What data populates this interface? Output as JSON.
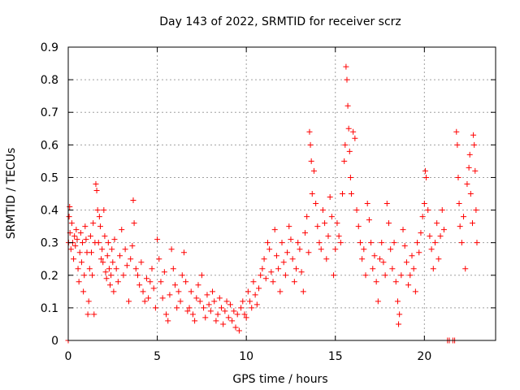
{
  "chart_data": {
    "type": "scatter",
    "title": "Day 143 of 2022, SRMTID for receiver scrz",
    "xlabel": "GPS time / hours",
    "ylabel": "SRMTID / TECUs",
    "xlim": [
      0,
      24
    ],
    "ylim": [
      0,
      0.9
    ],
    "xticks": [
      0,
      5,
      10,
      15,
      20
    ],
    "yticks": [
      0,
      0.1,
      0.2,
      0.3,
      0.4,
      0.5,
      0.6,
      0.7,
      0.8,
      0.9
    ],
    "xtick_labels": [
      "0",
      "5",
      "10",
      "15",
      "20"
    ],
    "ytick_labels": [
      "0",
      "0.1",
      "0.2",
      "0.3",
      "0.4",
      "0.5",
      "0.6",
      "0.7",
      "0.8",
      "0.9"
    ],
    "grid": true,
    "marker": "plus",
    "series": [
      {
        "name": "SRMTID",
        "color": "#ff0000",
        "points": [
          [
            0.0,
            0.0
          ],
          [
            0.02,
            0.3
          ],
          [
            0.05,
            0.38
          ],
          [
            0.08,
            0.41
          ],
          [
            0.1,
            0.33
          ],
          [
            0.15,
            0.28
          ],
          [
            0.2,
            0.36
          ],
          [
            0.25,
            0.3
          ],
          [
            0.3,
            0.25
          ],
          [
            0.35,
            0.32
          ],
          [
            0.4,
            0.29
          ],
          [
            0.45,
            0.34
          ],
          [
            0.5,
            0.31
          ],
          [
            0.55,
            0.22
          ],
          [
            0.6,
            0.18
          ],
          [
            0.65,
            0.27
          ],
          [
            0.7,
            0.33
          ],
          [
            0.75,
            0.24
          ],
          [
            0.8,
            0.3
          ],
          [
            0.85,
            0.15
          ],
          [
            0.9,
            0.2
          ],
          [
            0.95,
            0.35
          ],
          [
            1.0,
            0.31
          ],
          [
            1.05,
            0.27
          ],
          [
            1.1,
            0.08
          ],
          [
            1.15,
            0.12
          ],
          [
            1.2,
            0.22
          ],
          [
            1.25,
            0.32
          ],
          [
            1.3,
            0.27
          ],
          [
            1.35,
            0.2
          ],
          [
            1.4,
            0.36
          ],
          [
            1.45,
            0.08
          ],
          [
            1.5,
            0.3
          ],
          [
            1.55,
            0.48
          ],
          [
            1.6,
            0.46
          ],
          [
            1.65,
            0.4
          ],
          [
            1.7,
            0.3
          ],
          [
            1.75,
            0.38
          ],
          [
            1.8,
            0.35
          ],
          [
            1.85,
            0.25
          ],
          [
            1.9,
            0.28
          ],
          [
            1.95,
            0.24
          ],
          [
            2.0,
            0.4
          ],
          [
            2.05,
            0.32
          ],
          [
            2.1,
            0.21
          ],
          [
            2.15,
            0.19
          ],
          [
            2.2,
            0.26
          ],
          [
            2.25,
            0.3
          ],
          [
            2.3,
            0.22
          ],
          [
            2.35,
            0.17
          ],
          [
            2.4,
            0.2
          ],
          [
            2.45,
            0.28
          ],
          [
            2.5,
            0.24
          ],
          [
            2.55,
            0.15
          ],
          [
            2.6,
            0.31
          ],
          [
            2.7,
            0.22
          ],
          [
            2.8,
            0.18
          ],
          [
            2.9,
            0.26
          ],
          [
            3.0,
            0.34
          ],
          [
            3.1,
            0.2
          ],
          [
            3.2,
            0.28
          ],
          [
            3.3,
            0.23
          ],
          [
            3.4,
            0.12
          ],
          [
            3.5,
            0.25
          ],
          [
            3.6,
            0.29
          ],
          [
            3.65,
            0.43
          ],
          [
            3.7,
            0.36
          ],
          [
            3.8,
            0.22
          ],
          [
            3.9,
            0.2
          ],
          [
            4.0,
            0.17
          ],
          [
            4.1,
            0.24
          ],
          [
            4.2,
            0.15
          ],
          [
            4.3,
            0.12
          ],
          [
            4.4,
            0.19
          ],
          [
            4.5,
            0.13
          ],
          [
            4.6,
            0.18
          ],
          [
            4.7,
            0.22
          ],
          [
            4.8,
            0.16
          ],
          [
            4.9,
            0.1
          ],
          [
            5.0,
            0.31
          ],
          [
            5.1,
            0.25
          ],
          [
            5.2,
            0.18
          ],
          [
            5.3,
            0.13
          ],
          [
            5.4,
            0.21
          ],
          [
            5.5,
            0.08
          ],
          [
            5.6,
            0.06
          ],
          [
            5.7,
            0.14
          ],
          [
            5.8,
            0.28
          ],
          [
            5.9,
            0.22
          ],
          [
            6.0,
            0.17
          ],
          [
            6.1,
            0.1
          ],
          [
            6.2,
            0.15
          ],
          [
            6.3,
            0.12
          ],
          [
            6.4,
            0.2
          ],
          [
            6.5,
            0.27
          ],
          [
            6.6,
            0.18
          ],
          [
            6.7,
            0.09
          ],
          [
            6.8,
            0.1
          ],
          [
            6.9,
            0.15
          ],
          [
            7.0,
            0.08
          ],
          [
            7.1,
            0.06
          ],
          [
            7.2,
            0.13
          ],
          [
            7.3,
            0.17
          ],
          [
            7.4,
            0.12
          ],
          [
            7.5,
            0.2
          ],
          [
            7.6,
            0.1
          ],
          [
            7.7,
            0.07
          ],
          [
            7.8,
            0.14
          ],
          [
            7.9,
            0.11
          ],
          [
            8.0,
            0.09
          ],
          [
            8.1,
            0.15
          ],
          [
            8.2,
            0.12
          ],
          [
            8.3,
            0.06
          ],
          [
            8.4,
            0.08
          ],
          [
            8.5,
            0.13
          ],
          [
            8.6,
            0.1
          ],
          [
            8.7,
            0.05
          ],
          [
            8.8,
            0.09
          ],
          [
            8.9,
            0.12
          ],
          [
            9.0,
            0.07
          ],
          [
            9.1,
            0.11
          ],
          [
            9.2,
            0.06
          ],
          [
            9.3,
            0.09
          ],
          [
            9.4,
            0.04
          ],
          [
            9.5,
            0.08
          ],
          [
            9.6,
            0.03
          ],
          [
            9.7,
            0.1
          ],
          [
            9.8,
            0.12
          ],
          [
            9.9,
            0.08
          ],
          [
            10.0,
            0.07
          ],
          [
            10.1,
            0.15
          ],
          [
            10.2,
            0.12
          ],
          [
            10.3,
            0.1
          ],
          [
            10.4,
            0.18
          ],
          [
            10.5,
            0.14
          ],
          [
            10.6,
            0.11
          ],
          [
            10.7,
            0.16
          ],
          [
            10.8,
            0.2
          ],
          [
            10.9,
            0.22
          ],
          [
            11.0,
            0.25
          ],
          [
            11.1,
            0.19
          ],
          [
            11.2,
            0.3
          ],
          [
            11.3,
            0.28
          ],
          [
            11.4,
            0.21
          ],
          [
            11.5,
            0.18
          ],
          [
            11.6,
            0.34
          ],
          [
            11.7,
            0.26
          ],
          [
            11.8,
            0.22
          ],
          [
            11.9,
            0.15
          ],
          [
            12.0,
            0.3
          ],
          [
            12.1,
            0.24
          ],
          [
            12.2,
            0.2
          ],
          [
            12.3,
            0.27
          ],
          [
            12.4,
            0.35
          ],
          [
            12.5,
            0.31
          ],
          [
            12.6,
            0.25
          ],
          [
            12.7,
            0.18
          ],
          [
            12.8,
            0.22
          ],
          [
            12.9,
            0.3
          ],
          [
            13.0,
            0.28
          ],
          [
            13.1,
            0.21
          ],
          [
            13.2,
            0.15
          ],
          [
            13.3,
            0.33
          ],
          [
            13.4,
            0.38
          ],
          [
            13.5,
            0.27
          ],
          [
            13.55,
            0.64
          ],
          [
            13.6,
            0.6
          ],
          [
            13.65,
            0.55
          ],
          [
            13.7,
            0.45
          ],
          [
            13.8,
            0.52
          ],
          [
            13.9,
            0.42
          ],
          [
            14.0,
            0.35
          ],
          [
            14.1,
            0.3
          ],
          [
            14.2,
            0.28
          ],
          [
            14.3,
            0.4
          ],
          [
            14.4,
            0.36
          ],
          [
            14.5,
            0.25
          ],
          [
            14.6,
            0.32
          ],
          [
            14.7,
            0.44
          ],
          [
            14.8,
            0.38
          ],
          [
            14.9,
            0.2
          ],
          [
            15.0,
            0.28
          ],
          [
            15.1,
            0.36
          ],
          [
            15.2,
            0.32
          ],
          [
            15.3,
            0.3
          ],
          [
            15.4,
            0.45
          ],
          [
            15.5,
            0.55
          ],
          [
            15.55,
            0.6
          ],
          [
            15.6,
            0.84
          ],
          [
            15.65,
            0.8
          ],
          [
            15.7,
            0.72
          ],
          [
            15.75,
            0.65
          ],
          [
            15.8,
            0.58
          ],
          [
            15.85,
            0.5
          ],
          [
            15.9,
            0.45
          ],
          [
            16.0,
            0.64
          ],
          [
            16.1,
            0.62
          ],
          [
            16.2,
            0.4
          ],
          [
            16.3,
            0.35
          ],
          [
            16.4,
            0.3
          ],
          [
            16.5,
            0.25
          ],
          [
            16.6,
            0.28
          ],
          [
            16.7,
            0.2
          ],
          [
            16.8,
            0.42
          ],
          [
            16.9,
            0.37
          ],
          [
            17.0,
            0.3
          ],
          [
            17.1,
            0.22
          ],
          [
            17.2,
            0.26
          ],
          [
            17.3,
            0.18
          ],
          [
            17.4,
            0.12
          ],
          [
            17.5,
            0.25
          ],
          [
            17.6,
            0.3
          ],
          [
            17.7,
            0.24
          ],
          [
            17.8,
            0.2
          ],
          [
            17.9,
            0.42
          ],
          [
            18.0,
            0.36
          ],
          [
            18.1,
            0.28
          ],
          [
            18.2,
            0.22
          ],
          [
            18.3,
            0.3
          ],
          [
            18.4,
            0.18
          ],
          [
            18.5,
            0.12
          ],
          [
            18.55,
            0.05
          ],
          [
            18.6,
            0.08
          ],
          [
            18.7,
            0.2
          ],
          [
            18.8,
            0.34
          ],
          [
            18.9,
            0.29
          ],
          [
            19.0,
            0.24
          ],
          [
            19.1,
            0.17
          ],
          [
            19.2,
            0.2
          ],
          [
            19.3,
            0.26
          ],
          [
            19.4,
            0.22
          ],
          [
            19.5,
            0.15
          ],
          [
            19.6,
            0.3
          ],
          [
            19.7,
            0.27
          ],
          [
            19.8,
            0.33
          ],
          [
            19.9,
            0.38
          ],
          [
            20.0,
            0.42
          ],
          [
            20.05,
            0.52
          ],
          [
            20.1,
            0.5
          ],
          [
            20.2,
            0.4
          ],
          [
            20.3,
            0.32
          ],
          [
            20.4,
            0.28
          ],
          [
            20.5,
            0.22
          ],
          [
            20.6,
            0.3
          ],
          [
            20.7,
            0.36
          ],
          [
            20.8,
            0.25
          ],
          [
            20.9,
            0.32
          ],
          [
            21.0,
            0.4
          ],
          [
            21.1,
            0.34
          ],
          [
            21.3,
            0.0
          ],
          [
            21.4,
            0.0
          ],
          [
            21.6,
            0.0
          ],
          [
            21.7,
            0.0
          ],
          [
            21.8,
            0.64
          ],
          [
            21.85,
            0.6
          ],
          [
            21.9,
            0.5
          ],
          [
            21.95,
            0.42
          ],
          [
            22.0,
            0.35
          ],
          [
            22.1,
            0.3
          ],
          [
            22.2,
            0.38
          ],
          [
            22.3,
            0.22
          ],
          [
            22.4,
            0.48
          ],
          [
            22.5,
            0.53
          ],
          [
            22.55,
            0.57
          ],
          [
            22.6,
            0.45
          ],
          [
            22.7,
            0.36
          ],
          [
            22.75,
            0.63
          ],
          [
            22.8,
            0.6
          ],
          [
            22.85,
            0.52
          ],
          [
            22.9,
            0.4
          ],
          [
            22.95,
            0.3
          ]
        ]
      }
    ]
  }
}
